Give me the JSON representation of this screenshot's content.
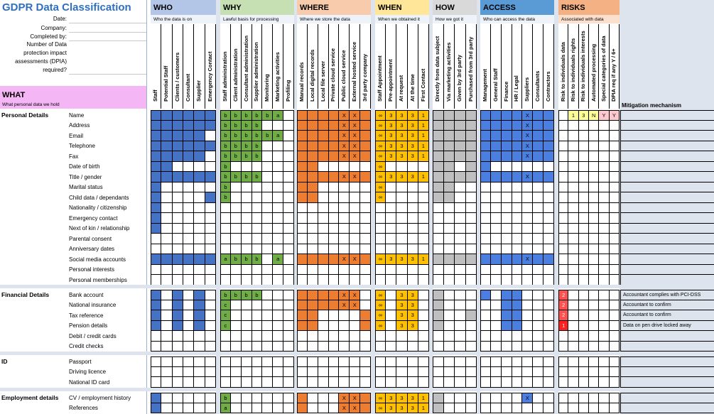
{
  "title": "GDPR Data Classification",
  "meta_labels": [
    "Date:",
    "Company:",
    "Completed by:"
  ],
  "dpia_label": [
    "Number of Data",
    "protection impact",
    "assessments (DPIA)",
    "required?"
  ],
  "what": {
    "title": "WHAT",
    "subtitle": "What personal data we hold"
  },
  "mitigation_header": "Mitigation mechanism",
  "groups": [
    {
      "name": "WHO",
      "subtitle": "Who the data is on",
      "color": "#b4c6e7",
      "columns": [
        "Staff",
        "Potential Staff",
        "Clients / customers",
        "Consultant",
        "Supplier",
        "Emergency Contact"
      ]
    },
    {
      "name": "WHY",
      "subtitle": "Lawful basis for processing",
      "color": "#c6e0b4",
      "columns": [
        "Staff administration",
        "Client administration",
        "Consultant administration",
        "Supplier administration",
        "Monitoring",
        "Marketing activities",
        "Profiling"
      ]
    },
    {
      "name": "WHERE",
      "subtitle": "Where we store the data",
      "color": "#f8cbad",
      "columns": [
        "Manual records",
        "Local digital records",
        "Local file server",
        "Private cloud service",
        "Public cloud service",
        "External hosted service",
        "3rd party company"
      ]
    },
    {
      "name": "WHEN",
      "subtitle": "When we obtained it",
      "color": "#ffe699",
      "columns": [
        "Staff Appointment",
        "Pre-appointment",
        "At request",
        "At the time",
        "First Contact"
      ]
    },
    {
      "name": "HOW",
      "subtitle": "How we got it",
      "color": "#d9d9d9",
      "columns": [
        "Directly from data subject",
        "Via marketing activities",
        "Given by 3rd party",
        "Purchased from 3rd party"
      ]
    },
    {
      "name": "ACCESS",
      "subtitle": "Who can access the data",
      "color": "#5b9bd5",
      "columns": [
        "Management",
        "General Staff",
        "Finance",
        "HR / Legal",
        "Suppliers",
        "Consultants",
        "Contractors"
      ]
    },
    {
      "name": "RISKS",
      "subtitle": "Associated with data",
      "color": "#f4b183",
      "columns": [
        "Risk to individuals data",
        "Risk to individuals rights",
        "Risk to individuals interests",
        "Automated processing",
        "Special categories of data",
        "DPIA req if any Y / 6+"
      ]
    }
  ],
  "colors": {
    "who": "#4472c4",
    "why": "#70ad47",
    "where": "#ed7d31",
    "when": "#ffc000",
    "how": "#bfbfbf",
    "access": "#4a7fe0",
    "risk_yellow": "#ffff99",
    "risk_red": "#ff5050",
    "risk_pink": "#ffc7ce",
    "risk_red_strong": "#ff2020"
  },
  "sections": [
    {
      "name": "Personal Details",
      "rows": [
        {
          "label": "Name",
          "who": "111111",
          "why": "bbbbba_",
          "where": "1111xx1",
          "when": "o3331",
          "how": "1111",
          "access": "1111x11",
          "risk": [
            "",
            "1",
            "3",
            "N",
            "Y",
            "Y"
          ],
          "mit": ""
        },
        {
          "label": "Address",
          "who": "111111",
          "why": "bbbb___",
          "where": "1111xx1",
          "when": "o3331",
          "how": "1111",
          "access": "1111x11",
          "risk": [
            "",
            "",
            "",
            "",
            "",
            ""
          ],
          "mit": ""
        },
        {
          "label": "Email",
          "who": "11111_",
          "why": "bbbbba_",
          "where": "1111xx1",
          "when": "o3331",
          "how": "1111",
          "access": "1111x11",
          "risk": [
            "",
            "",
            "",
            "",
            "",
            ""
          ],
          "mit": ""
        },
        {
          "label": "Telephone",
          "who": "111111",
          "why": "bbbb___",
          "where": "1111xx1",
          "when": "o3331",
          "how": "1111",
          "access": "1111x11",
          "risk": [
            "",
            "",
            "",
            "",
            "",
            ""
          ],
          "mit": ""
        },
        {
          "label": "Fax",
          "who": "11111_",
          "why": "bbbb___",
          "where": "1111xx1",
          "when": "o3331",
          "how": "1111",
          "access": "1111x11",
          "risk": [
            "",
            "",
            "",
            "",
            "",
            ""
          ],
          "mit": ""
        },
        {
          "label": "Date of birth",
          "who": "11____",
          "why": "b______",
          "where": "11_____",
          "when": "o____",
          "how": "11_1",
          "access": "1______",
          "risk": [
            "",
            "",
            "",
            "",
            "",
            ""
          ],
          "mit": ""
        },
        {
          "label": "Title / gender",
          "who": "111111",
          "why": "bbbb___",
          "where": "1111xx1",
          "when": "o3331",
          "how": "1111",
          "access": "1111x11",
          "risk": [
            "",
            "",
            "",
            "",
            "",
            ""
          ],
          "mit": ""
        },
        {
          "label": "Marital status",
          "who": "1_____",
          "why": "b______",
          "where": "11_____",
          "when": "o____",
          "how": "11__",
          "access": "_______",
          "risk": [
            "",
            "",
            "",
            "",
            "",
            ""
          ],
          "mit": ""
        },
        {
          "label": "Child data / dependants",
          "who": "1____1",
          "why": "b______",
          "where": "11_____",
          "when": "o____",
          "how": "11__",
          "access": "_______",
          "risk": [
            "",
            "",
            "",
            "",
            "",
            ""
          ],
          "mit": ""
        },
        {
          "label": "Nationality / citizenship",
          "who": "1_____",
          "why": "_______",
          "where": "_______",
          "when": "_____",
          "how": "____",
          "access": "_______",
          "risk": [
            "",
            "",
            "",
            "",
            "",
            ""
          ],
          "mit": ""
        },
        {
          "label": "Emergency contact",
          "who": "1_____",
          "why": "_______",
          "where": "_______",
          "when": "_____",
          "how": "____",
          "access": "_______",
          "risk": [
            "",
            "",
            "",
            "",
            "",
            ""
          ],
          "mit": ""
        },
        {
          "label": "Next of kin / relationship",
          "who": "1_____",
          "why": "_______",
          "where": "_______",
          "when": "_____",
          "how": "____",
          "access": "_______",
          "risk": [
            "",
            "",
            "",
            "",
            "",
            ""
          ],
          "mit": ""
        },
        {
          "label": "Parental consent",
          "who": "______",
          "why": "_______",
          "where": "_______",
          "when": "_____",
          "how": "____",
          "access": "_______",
          "risk": [
            "",
            "",
            "",
            "",
            "",
            ""
          ],
          "mit": ""
        },
        {
          "label": "Anniversary dates",
          "who": "______",
          "why": "_______",
          "where": "_______",
          "when": "_____",
          "how": "____",
          "access": "_______",
          "risk": [
            "",
            "",
            "",
            "",
            "",
            ""
          ],
          "mit": ""
        },
        {
          "label": "Social media accounts",
          "who": "111111",
          "why": "abbb_a_",
          "where": "1111xx1",
          "when": "o3331",
          "how": "1111",
          "access": "1111x11",
          "risk": [
            "",
            "",
            "",
            "",
            "",
            ""
          ],
          "mit": ""
        },
        {
          "label": "Personal interests",
          "who": "______",
          "why": "_______",
          "where": "_______",
          "when": "_____",
          "how": "____",
          "access": "_______",
          "risk": [
            "",
            "",
            "",
            "",
            "",
            ""
          ],
          "mit": ""
        },
        {
          "label": "Personal memberships",
          "who": "______",
          "why": "_______",
          "where": "_______",
          "when": "_____",
          "how": "____",
          "access": "_______",
          "risk": [
            "",
            "",
            "",
            "",
            "",
            ""
          ],
          "mit": ""
        }
      ]
    },
    {
      "name": "Financial Details",
      "rows": [
        {
          "label": "Bank account",
          "who": "1_1_1_",
          "why": "bbbb___",
          "where": "1111xx_",
          "when": "o_33_",
          "how": "1___",
          "access": "1_11___",
          "risk": [
            "2",
            "",
            "",
            "",
            "",
            ""
          ],
          "mit": "Accountant complies with PCI-DSS"
        },
        {
          "label": "National insurance",
          "who": "1_1_1_",
          "why": "c______",
          "where": "1111xx_",
          "when": "o_33_",
          "how": "1___",
          "access": "__11___",
          "risk": [
            "2",
            "",
            "",
            "",
            "",
            ""
          ],
          "mit": "Accountant to confirm"
        },
        {
          "label": "Tax reference",
          "who": "1_1_1_",
          "why": "c______",
          "where": "11____1",
          "when": "o_33_",
          "how": "1__1",
          "access": "__11___",
          "risk": [
            "2",
            "",
            "",
            "",
            "",
            ""
          ],
          "mit": "Accountant to confirm"
        },
        {
          "label": "Pension details",
          "who": "1_1_1_",
          "why": "c______",
          "where": "11____1",
          "when": "o_33_",
          "how": "1___",
          "access": "__11___",
          "risk": [
            "1",
            "",
            "",
            "",
            "",
            ""
          ],
          "mit": "Data on pen drive locked away"
        },
        {
          "label": "Debit / credit cards",
          "who": "______",
          "why": "_______",
          "where": "_______",
          "when": "_____",
          "how": "____",
          "access": "_______",
          "risk": [
            "",
            "",
            "",
            "",
            "",
            ""
          ],
          "mit": ""
        },
        {
          "label": "Credit checks",
          "who": "______",
          "why": "_______",
          "where": "_______",
          "when": "_____",
          "how": "____",
          "access": "_______",
          "risk": [
            "",
            "",
            "",
            "",
            "",
            ""
          ],
          "mit": ""
        }
      ]
    },
    {
      "name": "ID",
      "rows": [
        {
          "label": "Passport",
          "who": "______",
          "why": "_______",
          "where": "_______",
          "when": "_____",
          "how": "____",
          "access": "_______",
          "risk": [
            "",
            "",
            "",
            "",
            "",
            ""
          ],
          "mit": ""
        },
        {
          "label": "Driving licence",
          "who": "______",
          "why": "_______",
          "where": "_______",
          "when": "_____",
          "how": "____",
          "access": "_______",
          "risk": [
            "",
            "",
            "",
            "",
            "",
            ""
          ],
          "mit": ""
        },
        {
          "label": "National ID card",
          "who": "______",
          "why": "_______",
          "where": "_______",
          "when": "_____",
          "how": "____",
          "access": "_______",
          "risk": [
            "",
            "",
            "",
            "",
            "",
            ""
          ],
          "mit": ""
        }
      ]
    },
    {
      "name": "Employment details",
      "rows": [
        {
          "label": "CV / employment history",
          "who": "1_____",
          "why": "b______",
          "where": "1___xx1",
          "when": "o3331",
          "how": "1___",
          "access": "____x__",
          "risk": [
            "",
            "",
            "",
            "",
            "",
            ""
          ],
          "mit": ""
        },
        {
          "label": "References",
          "who": "1_____",
          "why": "a______",
          "where": "1___xx1",
          "when": "o3331",
          "how": "1___",
          "access": "_______",
          "risk": [
            "",
            "",
            "",
            "",
            "",
            ""
          ],
          "mit": ""
        }
      ]
    }
  ]
}
